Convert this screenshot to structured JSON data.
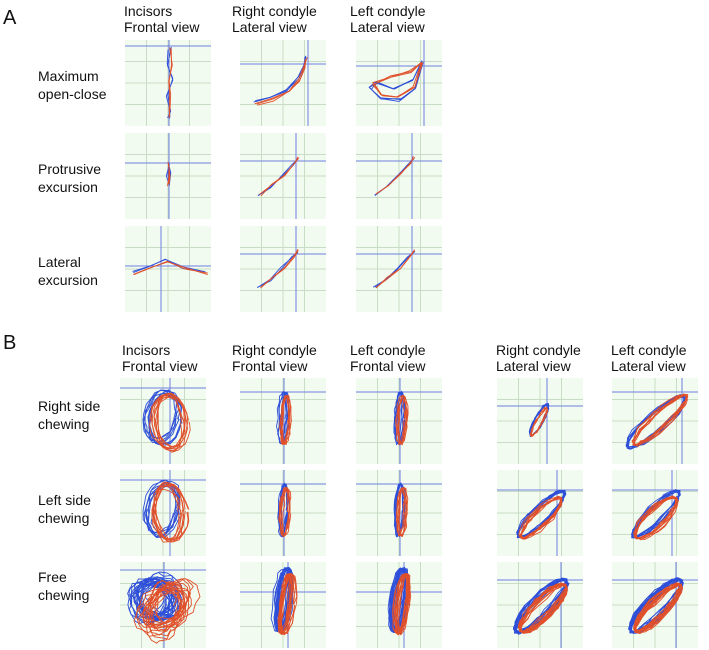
{
  "panelA": {
    "letter": "A",
    "columns": [
      {
        "line1": "Incisors",
        "line2": "Frontal view"
      },
      {
        "line1": "Right condyle",
        "line2": "Lateral view"
      },
      {
        "line1": "Left condyle",
        "line2": "Lateral view"
      }
    ],
    "rows": [
      {
        "line1": "Maximum",
        "line2": "open-close"
      },
      {
        "line1": "Protrusive",
        "line2": "excursion"
      },
      {
        "line1": "Lateral",
        "line2": "excursion"
      }
    ]
  },
  "panelB": {
    "letter": "B",
    "columns": [
      {
        "line1": "Incisors",
        "line2": "Frontal view"
      },
      {
        "line1": "Right condyle",
        "line2": "Frontal view"
      },
      {
        "line1": "Left condyle",
        "line2": "Frontal view"
      },
      {
        "line1": "Right condyle",
        "line2": "Lateral view"
      },
      {
        "line1": "Left condyle",
        "line2": "Lateral view"
      }
    ],
    "rows": [
      {
        "line1": "Right side",
        "line2": "chewing"
      },
      {
        "line1": "Left side",
        "line2": "chewing"
      },
      {
        "line1": "Free",
        "line2": "chewing"
      }
    ]
  },
  "colors": {
    "trace_blue": "#2e4fd8",
    "trace_red": "#e0502a",
    "grid": "#c9dcc6",
    "crosshair": "#6d7fe0",
    "cell_background": "#f2fbef"
  },
  "chart_data": {
    "type": "line",
    "description_units": "normalized trajectory traces per panel",
    "panels": [
      {
        "panel": "A",
        "row": "Maximum open-close",
        "column": "Incisors Frontal view",
        "shape": "vertical"
      },
      {
        "panel": "A",
        "row": "Maximum open-close",
        "column": "Right condyle Lateral view",
        "shape": "curve-up-right"
      },
      {
        "panel": "A",
        "row": "Maximum open-close",
        "column": "Left condyle Lateral view",
        "shape": "loop-u"
      },
      {
        "panel": "A",
        "row": "Protrusive excursion",
        "column": "Incisors Frontal view",
        "shape": "small-vertical"
      },
      {
        "panel": "A",
        "row": "Protrusive excursion",
        "column": "Right condyle Lateral view",
        "shape": "diagonal"
      },
      {
        "panel": "A",
        "row": "Protrusive excursion",
        "column": "Left condyle Lateral view",
        "shape": "diagonal"
      },
      {
        "panel": "A",
        "row": "Lateral excursion",
        "column": "Incisors Frontal view",
        "shape": "tent"
      },
      {
        "panel": "A",
        "row": "Lateral excursion",
        "column": "Right condyle Lateral view",
        "shape": "diagonal"
      },
      {
        "panel": "A",
        "row": "Lateral excursion",
        "column": "Left condyle Lateral view",
        "shape": "diagonal"
      },
      {
        "panel": "B",
        "row": "Right side chewing",
        "column": "Incisors Frontal view",
        "shape": "chew-loops"
      },
      {
        "panel": "B",
        "row": "Right side chewing",
        "column": "Right condyle Frontal view",
        "shape": "narrow-vertical"
      },
      {
        "panel": "B",
        "row": "Right side chewing",
        "column": "Left condyle Frontal view",
        "shape": "narrow-vertical"
      },
      {
        "panel": "B",
        "row": "Right side chewing",
        "column": "Right condyle Lateral view",
        "shape": "short-diagonal"
      },
      {
        "panel": "B",
        "row": "Right side chewing",
        "column": "Left condyle Lateral view",
        "shape": "wide-diagonal-loops"
      },
      {
        "panel": "B",
        "row": "Left side chewing",
        "column": "Incisors Frontal view",
        "shape": "chew-loops"
      },
      {
        "panel": "B",
        "row": "Left side chewing",
        "column": "Right condyle Frontal view",
        "shape": "narrow-vertical"
      },
      {
        "panel": "B",
        "row": "Left side chewing",
        "column": "Left condyle Frontal view",
        "shape": "narrow-vertical"
      },
      {
        "panel": "B",
        "row": "Left side chewing",
        "column": "Right condyle Lateral view",
        "shape": "diagonal-loops"
      },
      {
        "panel": "B",
        "row": "Left side chewing",
        "column": "Left condyle Lateral view",
        "shape": "diagonal-loops"
      },
      {
        "panel": "B",
        "row": "Free chewing",
        "column": "Incisors Frontal view",
        "shape": "dense-chew-loops"
      },
      {
        "panel": "B",
        "row": "Free chewing",
        "column": "Right condyle Frontal view",
        "shape": "dense-vertical"
      },
      {
        "panel": "B",
        "row": "Free chewing",
        "column": "Left condyle Frontal view",
        "shape": "dense-vertical"
      },
      {
        "panel": "B",
        "row": "Free chewing",
        "column": "Right condyle Lateral view",
        "shape": "dense-diagonal"
      },
      {
        "panel": "B",
        "row": "Free chewing",
        "column": "Left condyle Lateral view",
        "shape": "dense-diagonal"
      }
    ]
  }
}
